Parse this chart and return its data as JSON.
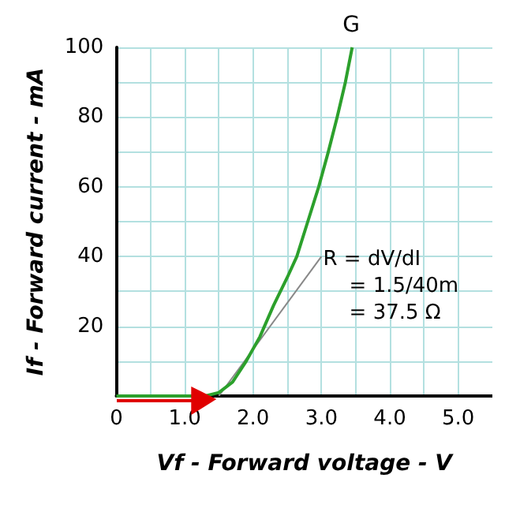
{
  "chart_data": {
    "type": "line",
    "xlabel": "Vf - Forward voltage - V",
    "ylabel": "If - Forward current - mA",
    "xlim": [
      0,
      5.5
    ],
    "ylim": [
      0,
      100
    ],
    "xticks": [
      0,
      {
        "value": 0.5,
        "label": null
      },
      {
        "value": 1,
        "label": "1.0"
      },
      {
        "value": 1.5,
        "label": null
      },
      {
        "value": 2,
        "label": "2.0"
      },
      {
        "value": 2.5,
        "label": null
      },
      {
        "value": 3,
        "label": "3.0"
      },
      {
        "value": 3.5,
        "label": null
      },
      {
        "value": 4,
        "label": "4.0"
      },
      {
        "value": 4.5,
        "label": null
      },
      {
        "value": 5,
        "label": "5.0"
      }
    ],
    "yticks": [
      {
        "value": 0,
        "label": null
      },
      {
        "value": 10,
        "label": null
      },
      20,
      {
        "value": 30,
        "label": null
      },
      40,
      {
        "value": 50,
        "label": null
      },
      60,
      {
        "value": 70,
        "label": null
      },
      80,
      {
        "value": 90,
        "label": null
      },
      100
    ],
    "grid": true,
    "marker": "none",
    "line_style": "solid",
    "series": [
      {
        "name": "G",
        "color": "#2ca02c",
        "x": [
          0,
          1.3,
          1.5,
          1.7,
          1.9,
          2.1,
          2.3,
          2.5,
          2.64,
          2.8,
          2.96,
          3.1,
          3.23,
          3.35,
          3.45
        ],
        "values": [
          0,
          0,
          1,
          4,
          10,
          17,
          26,
          34,
          40,
          50,
          60,
          70,
          80,
          90,
          100
        ]
      },
      {
        "color": "#888888",
        "x": [
          1.5,
          3.0
        ],
        "values": [
          0,
          40
        ]
      }
    ],
    "annotations": [
      "R = dV/dI\n    = 1.5/40m\n    = 37.5 Ω"
    ]
  }
}
